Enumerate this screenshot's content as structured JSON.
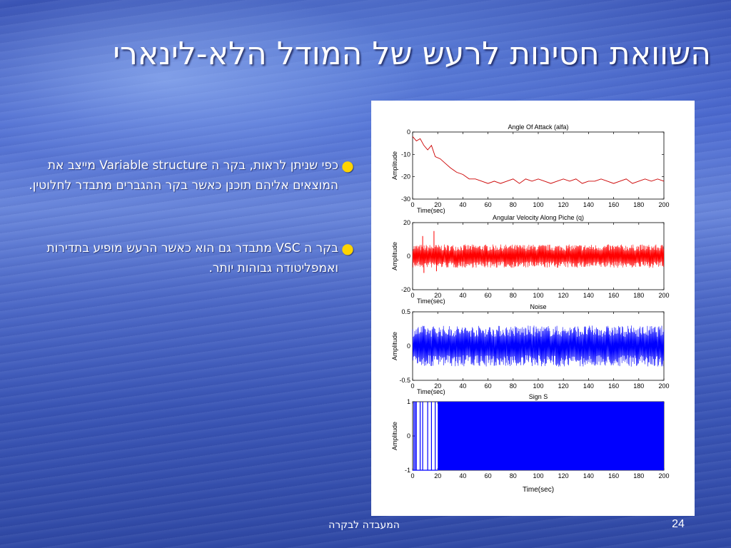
{
  "slide": {
    "title": "השוואת חסינות לרעש של המודל הלא-לינארי",
    "bullets": [
      {
        "text": "כפי שניתן לראות, בקר ה Variable structure מייצב את המוצאים אליהם תוכנן כאשר בקר ההגברים מתבדר לחלוטין."
      },
      {
        "text": "בקר ה VSC מתבדר גם הוא  כאשר הרעש מופיע בתדירות ואמפליטודה גבוהות יותר."
      }
    ],
    "footer_text": "המעבדה לבקרה",
    "page_number": "24",
    "bullet_color": "#ffd400"
  },
  "chart_data": [
    {
      "type": "line",
      "title": "Angle Of Attack (alfa)",
      "xlabel": "Time(sec)",
      "ylabel": "Amplitude",
      "xlim": [
        0,
        200
      ],
      "ylim": [
        -30,
        0
      ],
      "xticks": [
        0,
        20,
        40,
        60,
        80,
        100,
        120,
        140,
        160,
        180,
        200
      ],
      "yticks": [
        0,
        -10,
        -20,
        -30
      ],
      "color": "#cc0000",
      "style": "trace",
      "series": [
        {
          "x": [
            0,
            3,
            6,
            9,
            12,
            15,
            18,
            22,
            26,
            30,
            35,
            40,
            45,
            50,
            55,
            60,
            65,
            70,
            75,
            80,
            85,
            90,
            95,
            100,
            105,
            110,
            115,
            120,
            125,
            130,
            135,
            140,
            145,
            150,
            155,
            160,
            165,
            170,
            175,
            180,
            185,
            190,
            195,
            200
          ],
          "y": [
            -2,
            -4,
            -3,
            -6,
            -8,
            -6,
            -11,
            -12,
            -14,
            -16,
            -18,
            -19,
            -21,
            -21,
            -22,
            -23,
            -22,
            -23,
            -22,
            -21,
            -23,
            -21,
            -22,
            -21,
            -22,
            -23,
            -22,
            -21,
            -22,
            -21,
            -23,
            -22,
            -22,
            -21,
            -22,
            -23,
            -22,
            -21,
            -23,
            -22,
            -21,
            -22,
            -21,
            -22
          ]
        }
      ]
    },
    {
      "type": "line",
      "title": "Angular Velocity Along Piche (q)",
      "xlabel": "Time(sec)",
      "ylabel": "Amplitude",
      "xlim": [
        0,
        200
      ],
      "ylim": [
        -20,
        20
      ],
      "xticks": [
        0,
        20,
        40,
        60,
        80,
        100,
        120,
        140,
        160,
        180,
        200
      ],
      "yticks": [
        20,
        0,
        -20
      ],
      "color": "#ff0000",
      "style": "band",
      "band": {
        "lower": -7,
        "upper": 7,
        "spikes": [
          {
            "x": 8,
            "y": 12
          },
          {
            "x": 9,
            "y": -10
          },
          {
            "x": 17,
            "y": 15
          },
          {
            "x": 19,
            "y": -9
          }
        ]
      }
    },
    {
      "type": "line",
      "title": "Noise",
      "xlabel": "Time(sec)",
      "ylabel": "Amplitude",
      "xlim": [
        0,
        200
      ],
      "ylim": [
        -0.5,
        0.5
      ],
      "xticks": [
        0,
        20,
        40,
        60,
        80,
        100,
        120,
        140,
        160,
        180,
        200
      ],
      "yticks": [
        0.5,
        0,
        -0.5
      ],
      "color": "#0000ff",
      "style": "band",
      "band": {
        "lower": -0.3,
        "upper": 0.3,
        "spikes": []
      }
    },
    {
      "type": "line",
      "title": "Sign S",
      "xlabel": "Time(sec)",
      "ylabel": "Amplitude",
      "xlim": [
        0,
        200
      ],
      "ylim": [
        -1,
        1
      ],
      "xticks": [
        0,
        20,
        40,
        60,
        80,
        100,
        120,
        140,
        160,
        180,
        200
      ],
      "yticks": [
        1,
        0,
        -1
      ],
      "color": "#0000ff",
      "style": "switching",
      "switching": {
        "solid_from": 20,
        "lines_at": [
          1,
          2,
          3,
          6,
          8,
          12,
          15,
          18
        ]
      }
    }
  ]
}
